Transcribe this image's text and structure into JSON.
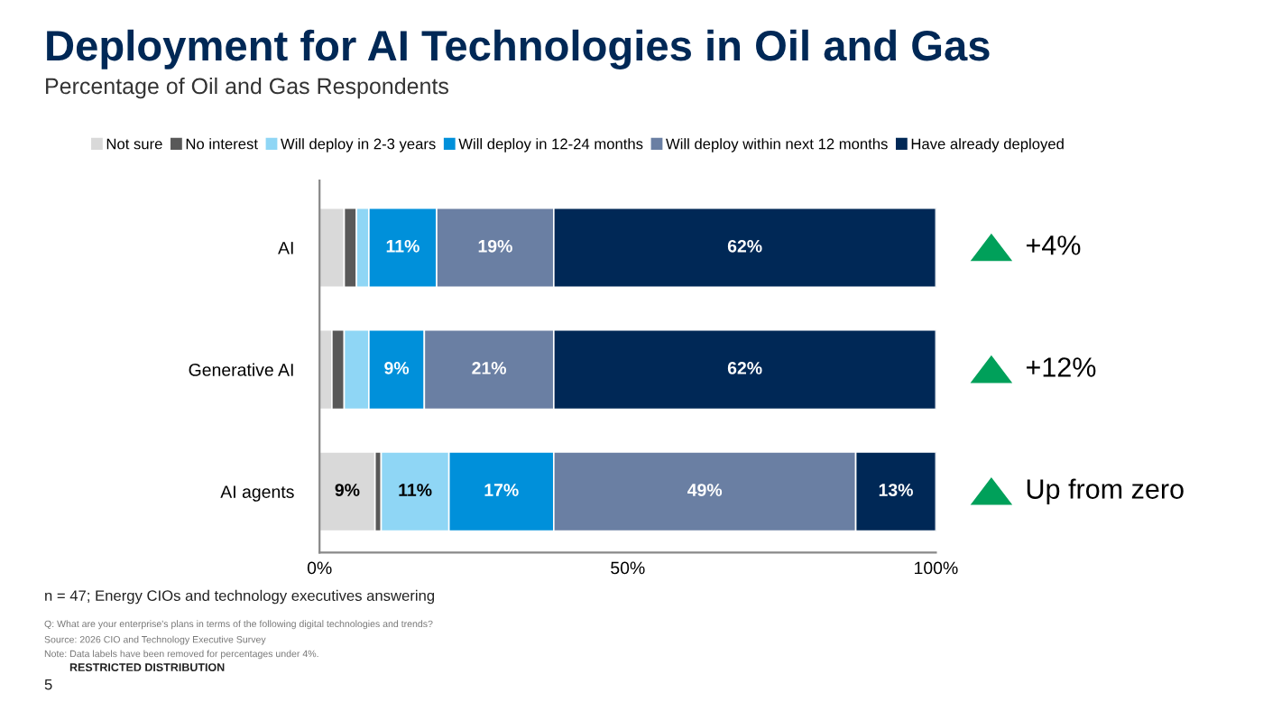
{
  "chart_data": {
    "type": "bar",
    "orientation": "horizontal",
    "stacked": true,
    "title": "Deployment for AI Technologies in Oil and Gas",
    "subtitle": "Percentage of Oil and Gas Respondents",
    "categories": [
      "AI",
      "Generative AI",
      "AI agents"
    ],
    "series": [
      {
        "name": "Not sure",
        "color": "#d9d9d9",
        "values": [
          4,
          2,
          9
        ],
        "value_labels": [
          null,
          null,
          "9%"
        ]
      },
      {
        "name": "No interest",
        "color": "#595959",
        "values": [
          2,
          2,
          1
        ],
        "value_labels": [
          null,
          null,
          null
        ]
      },
      {
        "name": "Will deploy in 2-3 years",
        "color": "#8fd6f5",
        "values": [
          2,
          4,
          11
        ],
        "value_labels": [
          null,
          null,
          "11%"
        ]
      },
      {
        "name": "Will deploy in 12-24 months",
        "color": "#0090da",
        "values": [
          11,
          9,
          17
        ],
        "value_labels": [
          "11%",
          "9%",
          "17%"
        ]
      },
      {
        "name": "Will deploy within next 12 months",
        "color": "#6a7fa3",
        "values": [
          19,
          21,
          49
        ],
        "value_labels": [
          "19%",
          "21%",
          "49%"
        ]
      },
      {
        "name": "Have already deployed",
        "color": "#002856",
        "values": [
          62,
          62,
          13
        ],
        "value_labels": [
          "62%",
          "62%",
          "13%"
        ]
      }
    ],
    "xlim": [
      0,
      100
    ],
    "xticks": [
      {
        "value": 0,
        "label": "0%"
      },
      {
        "value": 50,
        "label": "50%"
      },
      {
        "value": 100,
        "label": "100%"
      }
    ],
    "grid": false,
    "legend": "top",
    "annotations": [
      "+4%",
      "+12%",
      "Up from zero",
      "n = 47; Energy CIOs and technology executives answering",
      "Q: What are your enterprise's plans in terms of the following digital technologies and trends?",
      "Source: 2026 CIO and Technology Executive Survey",
      "Note: Data labels have been removed for percentages under 4%.",
      "RESTRICTED DISTRIBUTION",
      "5"
    ]
  }
}
